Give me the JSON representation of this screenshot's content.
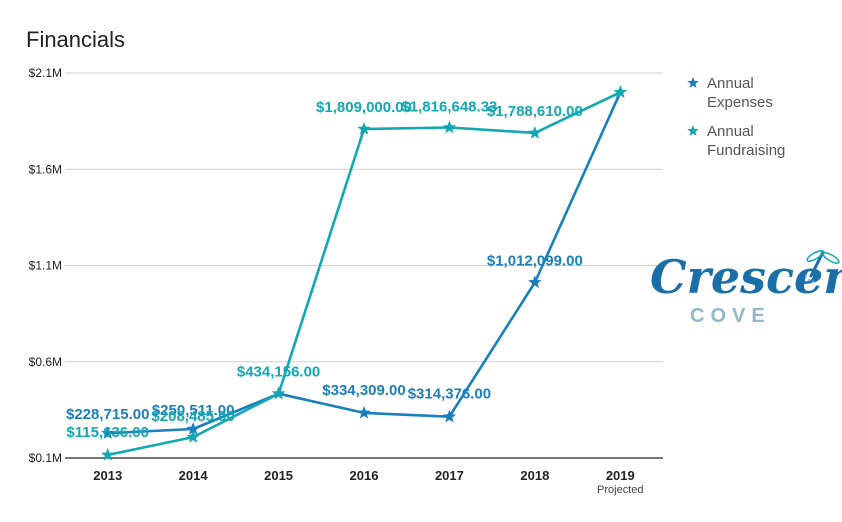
{
  "chart_data": {
    "type": "line",
    "title": "Financials",
    "categories": [
      "2013",
      "2014",
      "2015",
      "2016",
      "2017",
      "2018",
      "2019"
    ],
    "category_notes": [
      "",
      "",
      "",
      "",
      "",
      "",
      "Projected"
    ],
    "y_ticks": [
      "$0.1M",
      "$0.6M",
      "$1.1M",
      "$1.6M",
      "$2.1M"
    ],
    "ylim": [
      100000,
      2100000
    ],
    "grid": true,
    "legend_position": "top-right",
    "series": [
      {
        "name": "Annual Expenses",
        "color": "#1a7fbf",
        "marker": "star",
        "values": [
          228715,
          250511,
          434156,
          334309,
          314376,
          1012099,
          2000000
        ],
        "labels": [
          "$228,715.00",
          "$250,511.00",
          "",
          "$334,309.00",
          "$314,376.00",
          "$1,012,099.00",
          ""
        ]
      },
      {
        "name": "Annual Fundraising",
        "color": "#12a8b3",
        "marker": "star",
        "values": [
          115636,
          208485,
          434156,
          1809000,
          1816648.33,
          1788610,
          2000000
        ],
        "labels": [
          "$115,636.00",
          "$208,485.00",
          "$434,156.00",
          "$1,809,000.00",
          "$1,816,648.33",
          "$1,788,610.00",
          ""
        ]
      }
    ]
  },
  "logo": {
    "main": "Crescent",
    "sub": "COVE",
    "icon": "dragonfly-icon"
  }
}
